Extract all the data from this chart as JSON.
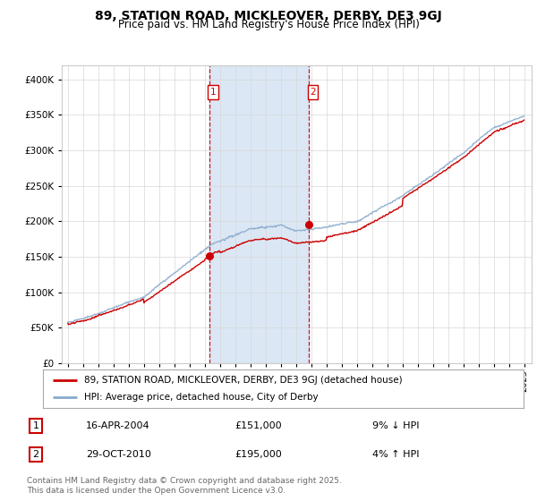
{
  "title": "89, STATION ROAD, MICKLEOVER, DERBY, DE3 9GJ",
  "subtitle": "Price paid vs. HM Land Registry's House Price Index (HPI)",
  "legend_label_red": "89, STATION ROAD, MICKLEOVER, DERBY, DE3 9GJ (detached house)",
  "legend_label_blue": "HPI: Average price, detached house, City of Derby",
  "footer": "Contains HM Land Registry data © Crown copyright and database right 2025.\nThis data is licensed under the Open Government Licence v3.0.",
  "table_rows": [
    {
      "num": "1",
      "date": "16-APR-2004",
      "price": "£151,000",
      "hpi": "9% ↓ HPI"
    },
    {
      "num": "2",
      "date": "29-OCT-2010",
      "price": "£195,000",
      "hpi": "4% ↑ HPI"
    }
  ],
  "vline1_year": 2004.29,
  "vline2_year": 2010.83,
  "point1_year": 2004.29,
  "point1_value": 151000,
  "point2_year": 2010.83,
  "point2_value": 195000,
  "ylim": [
    0,
    420000
  ],
  "yticks": [
    0,
    50000,
    100000,
    150000,
    200000,
    250000,
    300000,
    350000,
    400000
  ],
  "plot_bg": "#ffffff",
  "red_color": "#cc0000",
  "blue_color": "#88aacc",
  "vline_color": "#cc0000",
  "vline_shade": "#ccddf0",
  "title_fontsize": 10,
  "subtitle_fontsize": 8.5,
  "tick_fontsize": 7.5,
  "legend_fontsize": 7.5,
  "table_fontsize": 8,
  "footer_fontsize": 6.5,
  "footer_color": "#666666"
}
